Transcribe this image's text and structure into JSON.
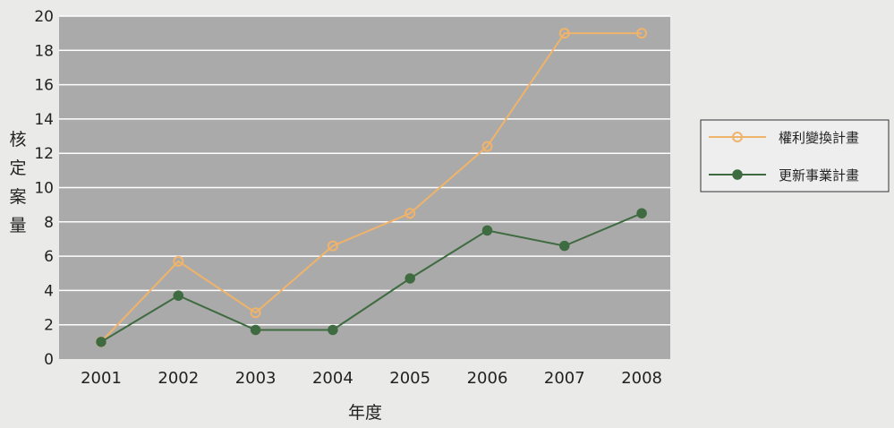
{
  "chart_data": {
    "type": "line",
    "categories": [
      "2001",
      "2002",
      "2003",
      "2004",
      "2005",
      "2006",
      "2007",
      "2008"
    ],
    "series": [
      {
        "name": "權利變換計畫",
        "values": [
          1,
          5.7,
          2.7,
          6.6,
          8.5,
          12.4,
          19,
          19
        ],
        "color": "#f0b36a",
        "marker": "hollow-circle"
      },
      {
        "name": "更新事業計畫",
        "values": [
          1,
          3.7,
          1.7,
          1.7,
          4.7,
          7.5,
          6.6,
          8.5
        ],
        "color": "#3f6b40",
        "marker": "filled-circle"
      }
    ],
    "xlabel": "年度",
    "ylabel": "核定案量",
    "ylim": [
      0,
      20
    ],
    "yticks": [
      0,
      2,
      4,
      6,
      8,
      10,
      12,
      14,
      16,
      18,
      20
    ],
    "grid": true,
    "legend_position": "right",
    "colors": {
      "plot_background": "#aaaaaa",
      "page_background": "#eaeae8",
      "gridline": "#ffffff"
    }
  }
}
